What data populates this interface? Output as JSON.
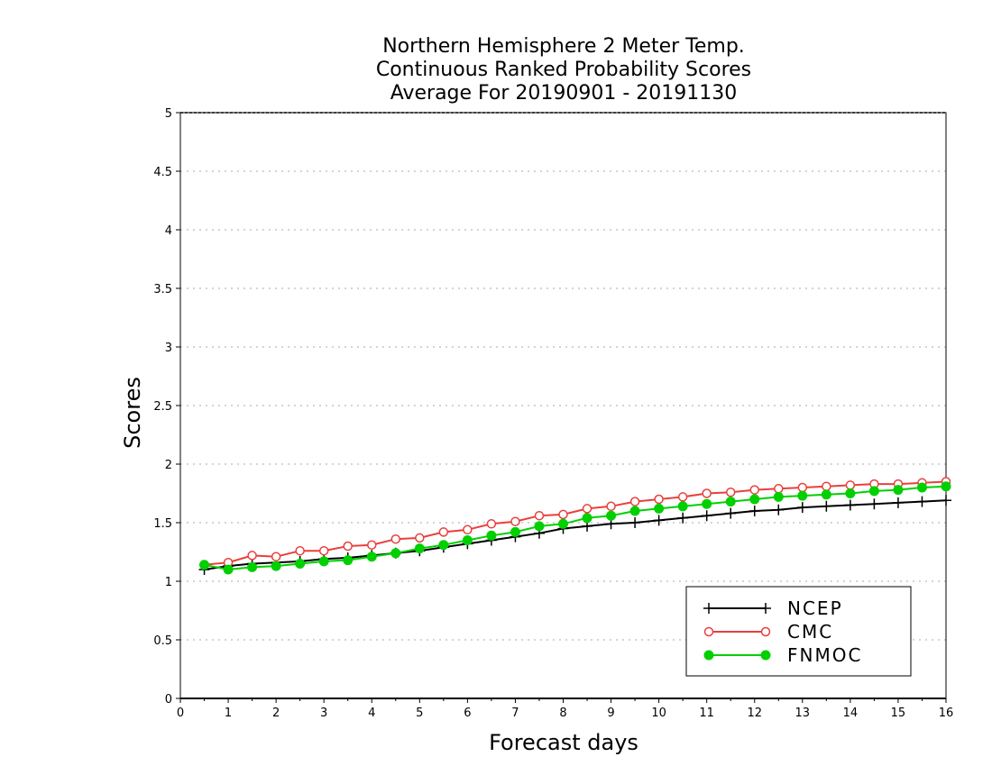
{
  "chart_data": {
    "type": "line",
    "title": [
      "Northern Hemisphere 2 Meter Temp.",
      "Continuous Ranked Probability Scores",
      "Average For 20190901 - 20191130"
    ],
    "xlabel": "Forecast days",
    "ylabel": "Scores",
    "xlim": [
      0,
      16
    ],
    "ylim": [
      0,
      5
    ],
    "xticks": [
      "0",
      "1",
      "2",
      "3",
      "4",
      "5",
      "6",
      "7",
      "8",
      "9",
      "10",
      "11",
      "12",
      "13",
      "14",
      "15",
      "16"
    ],
    "yticks": [
      "0",
      "0.5",
      "1",
      "1.5",
      "2",
      "2.5",
      "3",
      "3.5",
      "4",
      "4.5",
      "5"
    ],
    "grid": true,
    "legend_position": "bottom-right",
    "x": [
      0.5,
      1,
      1.5,
      2,
      2.5,
      3,
      3.5,
      4,
      4.5,
      5,
      5.5,
      6,
      6.5,
      7,
      7.5,
      8,
      8.5,
      9,
      9.5,
      10,
      10.5,
      11,
      11.5,
      12,
      12.5,
      13,
      13.5,
      14,
      14.5,
      15,
      15.5,
      16
    ],
    "series": [
      {
        "name": "NCEP",
        "color": "#000000",
        "marker": "plus",
        "values": [
          1.1,
          1.13,
          1.15,
          1.16,
          1.17,
          1.19,
          1.2,
          1.22,
          1.24,
          1.26,
          1.29,
          1.32,
          1.35,
          1.38,
          1.41,
          1.45,
          1.47,
          1.49,
          1.5,
          1.52,
          1.54,
          1.56,
          1.58,
          1.6,
          1.61,
          1.63,
          1.64,
          1.65,
          1.66,
          1.67,
          1.68,
          1.69
        ]
      },
      {
        "name": "CMC",
        "color": "#e8403c",
        "marker": "open-circle",
        "values": [
          1.14,
          1.16,
          1.22,
          1.21,
          1.26,
          1.26,
          1.3,
          1.31,
          1.36,
          1.37,
          1.42,
          1.44,
          1.49,
          1.51,
          1.56,
          1.57,
          1.62,
          1.64,
          1.68,
          1.7,
          1.72,
          1.75,
          1.76,
          1.78,
          1.79,
          1.8,
          1.81,
          1.82,
          1.83,
          1.83,
          1.84,
          1.85
        ]
      },
      {
        "name": "FNMOC",
        "color": "#00d000",
        "marker": "filled-circle",
        "values": [
          1.14,
          1.1,
          1.12,
          1.13,
          1.15,
          1.17,
          1.18,
          1.21,
          1.24,
          1.28,
          1.31,
          1.35,
          1.39,
          1.42,
          1.47,
          1.49,
          1.54,
          1.56,
          1.6,
          1.62,
          1.64,
          1.66,
          1.68,
          1.7,
          1.72,
          1.73,
          1.74,
          1.75,
          1.77,
          1.78,
          1.8,
          1.81
        ]
      }
    ]
  }
}
